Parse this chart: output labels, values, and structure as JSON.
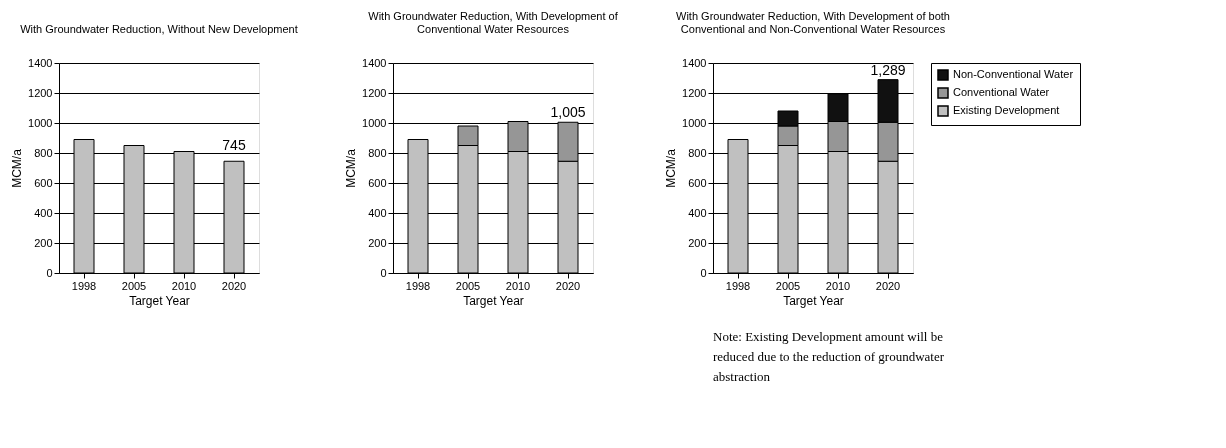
{
  "chart_data": [
    {
      "type": "bar",
      "title": "With Groundwater Reduction, Without New Development",
      "xlabel": "Target Year",
      "ylabel": "MCM/a",
      "categories": [
        "1998",
        "2005",
        "2010",
        "2020"
      ],
      "stacked": true,
      "ylim": [
        0,
        1400
      ],
      "yticks": [
        0,
        200,
        400,
        600,
        800,
        1000,
        1200,
        1400
      ],
      "grid": "y",
      "series": [
        {
          "color": "#c0c0c0",
          "values": [
            890,
            850,
            810,
            745
          ],
          "value_labels": [
            null,
            null,
            null,
            "745"
          ]
        }
      ]
    },
    {
      "type": "bar",
      "title": "With Groundwater Reduction, With Development of Conventional Water Resources",
      "xlabel": "Target Year",
      "ylabel": "MCM/a",
      "categories": [
        "1998",
        "2005",
        "2010",
        "2020"
      ],
      "stacked": true,
      "ylim": [
        0,
        1400
      ],
      "yticks": [
        0,
        200,
        400,
        600,
        800,
        1000,
        1200,
        1400
      ],
      "grid": "y",
      "totals": [
        null,
        null,
        null,
        "1,005"
      ],
      "series": [
        {
          "color": "#c0c0c0",
          "values": [
            890,
            850,
            810,
            745
          ]
        },
        {
          "color": "#969696",
          "values": [
            null,
            130,
            200,
            260
          ]
        }
      ]
    },
    {
      "type": "bar",
      "title": "With Groundwater Reduction, With Development of both Conventional and Non-Conventional Water Resources",
      "xlabel": "Target Year",
      "ylabel": "MCM/a",
      "categories": [
        "1998",
        "2005",
        "2010",
        "2020"
      ],
      "stacked": true,
      "ylim": [
        0,
        1400
      ],
      "yticks": [
        0,
        200,
        400,
        600,
        800,
        1000,
        1200,
        1400
      ],
      "grid": "y",
      "legend": "right",
      "totals": [
        null,
        null,
        null,
        "1,289"
      ],
      "annotations": [
        "Note: Existing Development amount will be reduced due to the reduction of groundwater abstraction"
      ],
      "series": [
        {
          "name": "Existing Development",
          "color": "#c0c0c0",
          "values": [
            890,
            850,
            810,
            745
          ]
        },
        {
          "name": "Conventional Water",
          "color": "#969696",
          "values": [
            null,
            130,
            200,
            260
          ]
        },
        {
          "name": "Non-Conventional Water",
          "color": "#111111",
          "values": [
            null,
            100,
            185,
            284
          ]
        }
      ]
    }
  ]
}
